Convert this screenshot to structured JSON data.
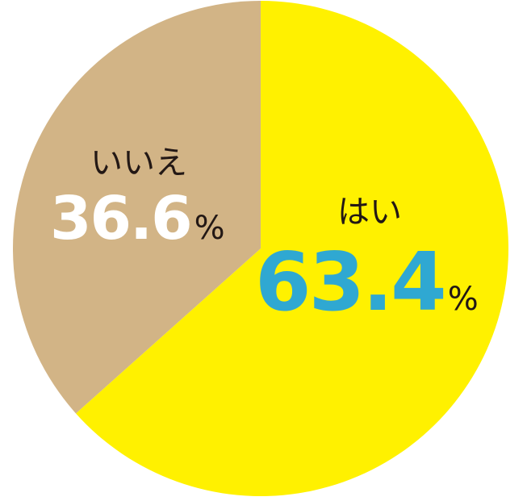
{
  "chart_data": {
    "type": "pie",
    "title": "",
    "slices": [
      {
        "label": "はい",
        "value": 63.4,
        "value_text": "63.4",
        "unit": "%",
        "color": "#FFF100",
        "value_color": "#2FA8D2"
      },
      {
        "label": "いいえ",
        "value": 36.6,
        "value_text": "36.6",
        "unit": "%",
        "color": "#D2B486",
        "value_color": "#FFFFFF"
      }
    ],
    "start": "top",
    "direction": "clockwise",
    "legend": "none"
  }
}
